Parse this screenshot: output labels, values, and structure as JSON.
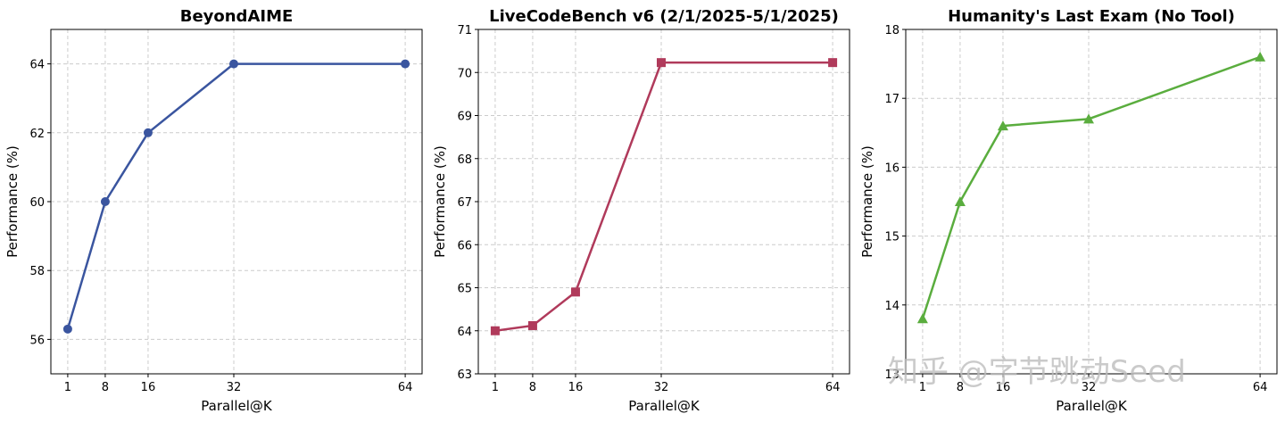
{
  "chart_data": [
    {
      "type": "line",
      "title": "BeyondAIME",
      "x_label": "Parallel@K",
      "y_label": "Performance (%)",
      "x": [
        1,
        8,
        16,
        32,
        64
      ],
      "xticks": [
        1,
        8,
        16,
        32,
        64
      ],
      "xlim": [
        -2.15,
        67.15
      ],
      "ylim": [
        55,
        65
      ],
      "yticks": [
        56,
        58,
        60,
        62,
        64
      ],
      "grid": true,
      "series": [
        {
          "color": "#3a559f",
          "marker": "circle",
          "values": [
            56.3,
            60,
            62,
            64,
            64
          ]
        }
      ]
    },
    {
      "type": "line",
      "title": "LiveCodeBench v6 (2/1/2025-5/1/2025)",
      "x_label": "Parallel@K",
      "y_label": "Performance (%)",
      "x": [
        1,
        8,
        16,
        32,
        64
      ],
      "xticks": [
        1,
        8,
        16,
        32,
        64
      ],
      "xlim": [
        -2.15,
        67.15
      ],
      "ylim": [
        63,
        71
      ],
      "yticks": [
        63,
        64,
        65,
        66,
        67,
        68,
        69,
        70,
        71
      ],
      "grid": true,
      "series": [
        {
          "color": "#b03a5b",
          "marker": "square",
          "values": [
            64,
            64.12,
            64.9,
            70.23,
            70.23
          ]
        }
      ]
    },
    {
      "type": "line",
      "title": "Humanity's Last Exam (No Tool)",
      "x_label": "Parallel@K",
      "y_label": "Performance (%)",
      "x": [
        1,
        8,
        16,
        32,
        64
      ],
      "xticks": [
        1,
        8,
        16,
        32,
        64
      ],
      "xlim": [
        -2.15,
        67.15
      ],
      "ylim": [
        13,
        18
      ],
      "yticks": [
        13,
        14,
        15,
        16,
        17,
        18
      ],
      "grid": true,
      "series": [
        {
          "color": "#5aad3e",
          "marker": "triangle",
          "values": [
            13.8,
            15.5,
            16.6,
            16.7,
            17.6
          ]
        }
      ]
    }
  ],
  "watermark": "知乎 @字节跳动Seed"
}
